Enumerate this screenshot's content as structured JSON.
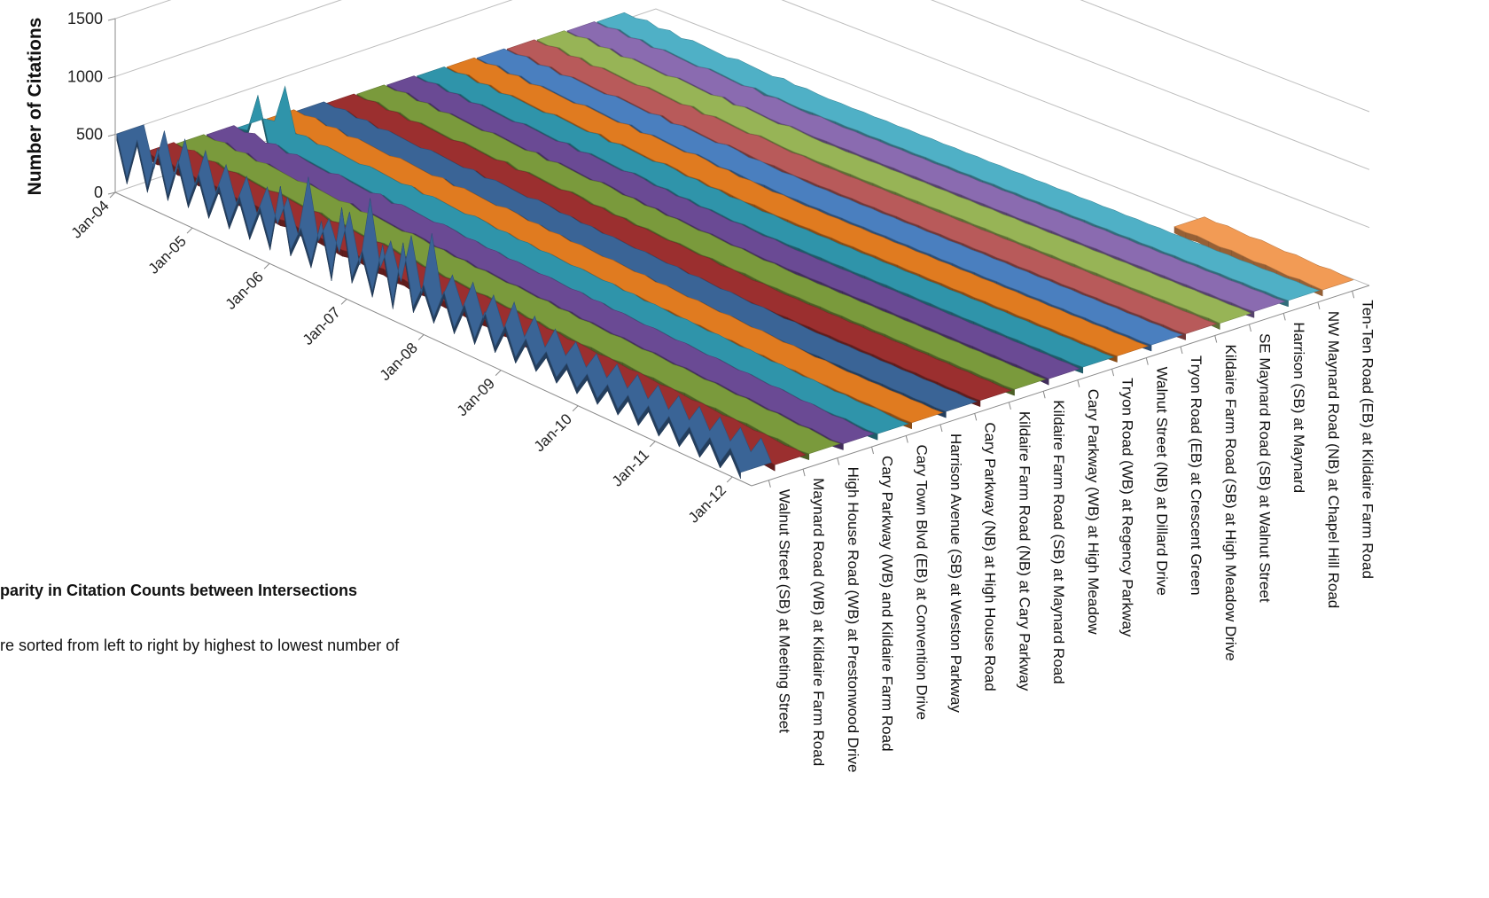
{
  "chart_data": {
    "type": "line",
    "style": "3d-ribbon",
    "ylabel": "Number of Citations",
    "yticks": [
      "0",
      "500",
      "1000",
      "1500"
    ],
    "ylim": [
      0,
      1500
    ],
    "xticks": [
      "Jan-04",
      "Jan-05",
      "Jan-06",
      "Jan-07",
      "Jan-08",
      "Jan-09",
      "Jan-10",
      "Jan-11",
      "Jan-12"
    ],
    "grid": true,
    "series": [
      {
        "name": "Walnut Street (SB) at Meeting Street",
        "color": "#3a6496",
        "values": [
          500,
          160,
          530,
          170,
          540,
          180,
          520,
          200,
          480,
          190,
          460,
          180,
          450,
          170,
          440,
          160,
          700,
          190,
          420,
          170,
          560,
          140,
          760,
          200,
          470,
          160,
          600,
          140,
          700,
          190,
          420,
          180,
          440,
          170,
          410,
          160,
          430,
          170,
          390,
          160,
          360,
          170,
          330,
          150,
          310,
          140,
          300,
          130,
          290,
          120,
          280,
          110,
          270,
          100,
          260,
          90,
          250,
          80,
          240,
          70,
          230,
          60
        ]
      },
      {
        "name": "Maynard Road (WB) at Kildaire Farm Road",
        "color": "#9b2f2f",
        "values": [
          260,
          240,
          270,
          230,
          250,
          220,
          240,
          230,
          220,
          210,
          230,
          220,
          210,
          200,
          220,
          190,
          210,
          200,
          190,
          180,
          200,
          190,
          170,
          180,
          160,
          170,
          150,
          160,
          150,
          140,
          150,
          140,
          130,
          140,
          120,
          130,
          110,
          120,
          100,
          110,
          100,
          90,
          100,
          90,
          80,
          90,
          80,
          70,
          80,
          70,
          60,
          70,
          60,
          50,
          60,
          50,
          40,
          50,
          40,
          30,
          40,
          30
        ]
      },
      {
        "name": "High House Road (WB) at Prestonwood Drive",
        "color": "#7a9a3c",
        "values": [
          240,
          230,
          250,
          220,
          240,
          210,
          230,
          220,
          210,
          200,
          220,
          210,
          200,
          190,
          210,
          180,
          200,
          190,
          180,
          170,
          190,
          180,
          160,
          170,
          150,
          160,
          140,
          150,
          140,
          130,
          140,
          130,
          120,
          130,
          110,
          120,
          100,
          110,
          100,
          90,
          100,
          90,
          80,
          90,
          80,
          70,
          80,
          70,
          60,
          70,
          60,
          50,
          60,
          50,
          40,
          50,
          40,
          30,
          40,
          30,
          20,
          30
        ]
      },
      {
        "name": "Cary Parkway (WB) and Kildaire Farm Road",
        "color": "#6a4a94",
        "values": [
          230,
          210,
          240,
          200,
          230,
          190,
          220,
          200,
          190,
          180,
          210,
          190,
          180,
          170,
          200,
          160,
          190,
          180,
          170,
          160,
          180,
          170,
          150,
          160,
          140,
          150,
          130,
          140,
          130,
          120,
          130,
          120,
          110,
          120,
          100,
          110,
          90,
          100,
          90,
          80,
          90,
          80,
          70,
          80,
          70,
          60,
          70,
          60,
          50,
          60,
          50,
          40,
          50,
          40,
          30,
          40,
          30,
          20,
          30,
          20,
          10,
          20
        ]
      },
      {
        "name": "Cary Town Blvd (EB) at Convention Drive",
        "color": "#2f94aa",
        "values": [
          200,
          220,
          560,
          190,
          210,
          180,
          200,
          190,
          180,
          170,
          190,
          180,
          170,
          160,
          180,
          150,
          170,
          160,
          150,
          140,
          160,
          150,
          130,
          140,
          120,
          130,
          110,
          120,
          110,
          100,
          110,
          100,
          90,
          100,
          80,
          90,
          70,
          80,
          70,
          60,
          70,
          60,
          50,
          60,
          50,
          40,
          50,
          40,
          30,
          40,
          30,
          20,
          30,
          20,
          10,
          20,
          10,
          10,
          20,
          10,
          5,
          10
        ]
      },
      {
        "name": "Harrison Avenue (SB) at Weston Parkway",
        "color": "#e07b20",
        "values": [
          190,
          180,
          200,
          170,
          190,
          160,
          180,
          170,
          160,
          150,
          170,
          160,
          150,
          140,
          160,
          130,
          150,
          140,
          130,
          120,
          140,
          130,
          110,
          120,
          100,
          110,
          90,
          100,
          90,
          80,
          90,
          80,
          70,
          80,
          60,
          70,
          60,
          50,
          60,
          50,
          40,
          50,
          40,
          30,
          40,
          30,
          20,
          30,
          20,
          10,
          20,
          10,
          5,
          10,
          5,
          10,
          5,
          10,
          5,
          10,
          5,
          10
        ]
      },
      {
        "name": "Cary Parkway (NB) at High House Road",
        "color": "#3a6496",
        "values": [
          170,
          160,
          180,
          150,
          170,
          140,
          160,
          150,
          140,
          130,
          150,
          140,
          130,
          120,
          140,
          110,
          130,
          120,
          110,
          100,
          120,
          110,
          90,
          100,
          80,
          90,
          70,
          80,
          70,
          60,
          70,
          60,
          50,
          60,
          40,
          50,
          40,
          30,
          40,
          30,
          20,
          30,
          20,
          10,
          20,
          10,
          5,
          10,
          5,
          10,
          5,
          10,
          5,
          10,
          5,
          10,
          5,
          10,
          5,
          10,
          5,
          10
        ]
      },
      {
        "name": "Kildaire Farm Road (NB) at Cary Parkway",
        "color": "#9b2f2f",
        "values": [
          150,
          140,
          160,
          130,
          150,
          120,
          140,
          130,
          120,
          110,
          130,
          120,
          110,
          100,
          120,
          90,
          110,
          100,
          90,
          80,
          100,
          90,
          70,
          80,
          60,
          70,
          50,
          60,
          50,
          40,
          50,
          40,
          30,
          40,
          20,
          30,
          20,
          10,
          20,
          10,
          5,
          10,
          5,
          10,
          5,
          10,
          5,
          10,
          5,
          10,
          5,
          10,
          5,
          10,
          5,
          10,
          5,
          10,
          5,
          10,
          5,
          10
        ]
      },
      {
        "name": "Kildaire Farm Road (SB) at Maynard Road",
        "color": "#7a9a3c",
        "values": [
          140,
          130,
          150,
          120,
          140,
          110,
          130,
          120,
          110,
          100,
          120,
          110,
          100,
          90,
          110,
          80,
          100,
          90,
          80,
          70,
          90,
          80,
          60,
          70,
          50,
          60,
          40,
          50,
          40,
          30,
          40,
          30,
          20,
          30,
          20,
          10,
          20,
          10,
          5,
          10,
          5,
          10,
          5,
          10,
          5,
          10,
          5,
          10,
          5,
          10,
          5,
          10,
          5,
          10,
          5,
          10,
          5,
          10,
          5,
          10,
          5,
          10
        ]
      },
      {
        "name": "Cary Parkway (WB) at High Meadow",
        "color": "#6a4a94",
        "values": [
          130,
          120,
          140,
          110,
          130,
          100,
          120,
          110,
          100,
          90,
          110,
          100,
          90,
          80,
          100,
          70,
          90,
          80,
          70,
          60,
          80,
          70,
          50,
          60,
          40,
          50,
          30,
          40,
          30,
          20,
          30,
          20,
          10,
          20,
          10,
          5,
          10,
          5,
          10,
          5,
          10,
          5,
          10,
          5,
          10,
          5,
          10,
          5,
          10,
          5,
          10,
          5,
          10,
          5,
          10,
          5,
          10,
          5,
          10,
          5,
          10,
          5
        ]
      },
      {
        "name": "Tryon Road (WB) at Regency Parkway",
        "color": "#2f94aa",
        "values": [
          120,
          110,
          130,
          100,
          120,
          90,
          110,
          100,
          90,
          80,
          100,
          90,
          80,
          70,
          90,
          60,
          80,
          70,
          60,
          50,
          70,
          60,
          40,
          50,
          30,
          40,
          20,
          30,
          20,
          10,
          20,
          10,
          5,
          10,
          5,
          10,
          5,
          10,
          5,
          10,
          5,
          10,
          5,
          10,
          5,
          10,
          5,
          10,
          5,
          10,
          5,
          10,
          5,
          10,
          5,
          10,
          5,
          10,
          5,
          10,
          5,
          10
        ]
      },
      {
        "name": "Walnut Street (NB) at Dillard Drive",
        "color": "#e07b20",
        "values": [
          110,
          100,
          120,
          90,
          110,
          80,
          100,
          90,
          80,
          70,
          90,
          80,
          70,
          60,
          80,
          50,
          70,
          60,
          50,
          40,
          60,
          50,
          30,
          40,
          20,
          30,
          20,
          10,
          20,
          10,
          5,
          10,
          5,
          10,
          5,
          10,
          5,
          10,
          5,
          10,
          5,
          10,
          5,
          10,
          5,
          10,
          5,
          10,
          5,
          10,
          5,
          10,
          5,
          10,
          5,
          10,
          5,
          10,
          5,
          10,
          5,
          10
        ]
      },
      {
        "name": "Tryon Road (EB) at Crescent Green",
        "color": "#4a7fbf",
        "values": [
          100,
          90,
          110,
          80,
          100,
          70,
          90,
          80,
          70,
          60,
          80,
          70,
          60,
          50,
          70,
          40,
          60,
          50,
          40,
          30,
          50,
          40,
          20,
          30,
          20,
          10,
          20,
          10,
          5,
          10,
          5,
          10,
          5,
          10,
          5,
          10,
          5,
          10,
          5,
          10,
          5,
          10,
          5,
          10,
          5,
          10,
          5,
          10,
          5,
          10,
          5,
          10,
          5,
          10,
          5,
          10,
          5,
          10,
          5,
          10,
          5,
          10
        ]
      },
      {
        "name": "Kildaire Farm Road (SB) at High Meadow Drive",
        "color": "#b85a5a",
        "values": [
          90,
          80,
          100,
          70,
          90,
          60,
          80,
          70,
          60,
          50,
          70,
          60,
          50,
          40,
          60,
          30,
          50,
          40,
          30,
          20,
          40,
          30,
          20,
          10,
          20,
          10,
          5,
          10,
          5,
          10,
          5,
          10,
          5,
          10,
          5,
          10,
          5,
          10,
          5,
          10,
          5,
          10,
          5,
          10,
          5,
          10,
          5,
          10,
          5,
          10,
          5,
          10,
          5,
          10,
          5,
          10,
          5,
          10,
          5,
          10,
          5,
          10
        ]
      },
      {
        "name": "SE Maynard Road (SB) at Walnut Street",
        "color": "#97b456",
        "values": [
          80,
          70,
          90,
          60,
          80,
          50,
          70,
          60,
          50,
          40,
          60,
          50,
          40,
          30,
          50,
          20,
          40,
          30,
          20,
          10,
          30,
          20,
          10,
          5,
          10,
          5,
          10,
          5,
          10,
          5,
          10,
          5,
          10,
          5,
          10,
          5,
          10,
          5,
          10,
          5,
          10,
          5,
          10,
          5,
          10,
          5,
          10,
          5,
          10,
          5,
          10,
          5,
          10,
          5,
          10,
          5,
          10,
          5,
          10,
          5,
          10,
          5
        ]
      },
      {
        "name": "Harrison (SB) at Maynard",
        "color": "#8a6bb0",
        "values": [
          70,
          60,
          80,
          50,
          70,
          40,
          60,
          50,
          40,
          30,
          50,
          40,
          30,
          20,
          40,
          10,
          30,
          20,
          10,
          5,
          20,
          10,
          5,
          10,
          5,
          10,
          5,
          10,
          5,
          10,
          5,
          10,
          5,
          10,
          5,
          10,
          5,
          10,
          5,
          10,
          5,
          10,
          5,
          10,
          5,
          10,
          5,
          10,
          5,
          10,
          5,
          10,
          5,
          10,
          5,
          10,
          5,
          10,
          5,
          10,
          5,
          10
        ]
      },
      {
        "name": "NW Maynard Road (NB) at Chapel Hill Road",
        "color": "#4fb0c6",
        "values": [
          60,
          50,
          70,
          40,
          60,
          30,
          50,
          40,
          30,
          20,
          40,
          30,
          20,
          10,
          30,
          10,
          20,
          10,
          5,
          10,
          5,
          10,
          5,
          10,
          5,
          10,
          5,
          10,
          5,
          10,
          5,
          10,
          5,
          10,
          5,
          10,
          5,
          10,
          5,
          10,
          5,
          10,
          5,
          10,
          5,
          10,
          5,
          10,
          5,
          10,
          5,
          10,
          5,
          10,
          5,
          10,
          5,
          10,
          5,
          10,
          5,
          10
        ]
      },
      {
        "name": "Ten-Ten Road (EB) at Kildaire Farm Road",
        "color": "#f29b55",
        "values": [
          null,
          null,
          null,
          null,
          null,
          null,
          null,
          null,
          null,
          null,
          null,
          null,
          null,
          null,
          null,
          null,
          null,
          null,
          null,
          null,
          null,
          null,
          null,
          null,
          null,
          null,
          null,
          null,
          null,
          null,
          null,
          null,
          null,
          null,
          null,
          null,
          null,
          null,
          null,
          null,
          null,
          null,
          null,
          null,
          null,
          null,
          null,
          null,
          50,
          40,
          50,
          40,
          30,
          40,
          30,
          20,
          30,
          20,
          10,
          20,
          10,
          5
        ]
      }
    ]
  },
  "caption": {
    "title": "parity in Citation Counts between Intersections",
    "text": "re sorted from left to right by highest to lowest number of"
  }
}
